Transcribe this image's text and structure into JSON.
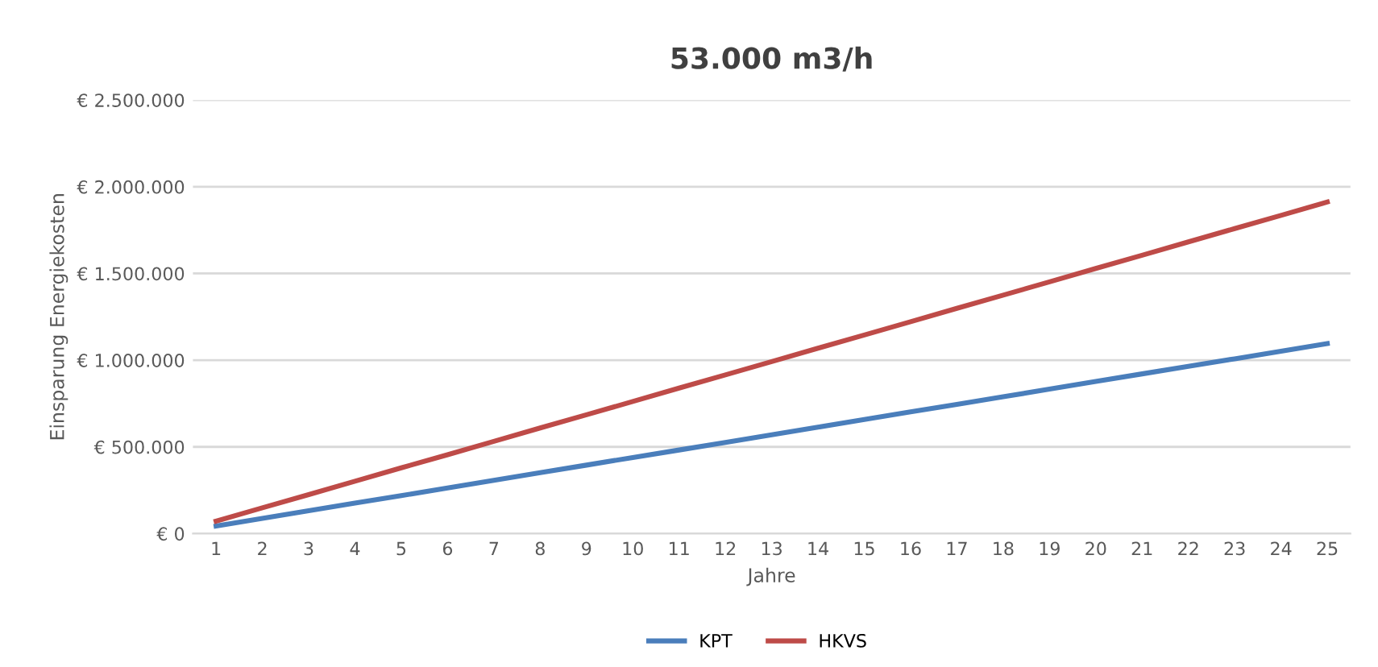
{
  "chart_data": {
    "type": "line",
    "title": "53.000 m3/h",
    "xlabel": "Jahre",
    "ylabel": "Einsparung Energiekosten",
    "categories": [
      "1",
      "2",
      "3",
      "4",
      "5",
      "6",
      "7",
      "8",
      "9",
      "10",
      "11",
      "12",
      "13",
      "14",
      "15",
      "16",
      "17",
      "18",
      "19",
      "20",
      "21",
      "22",
      "23",
      "24",
      "25"
    ],
    "series": [
      {
        "name": "KPT",
        "color": "#4a7ebb",
        "values": [
          44000,
          88000,
          132000,
          176000,
          219000,
          263000,
          307000,
          351000,
          395000,
          439000,
          482000,
          526000,
          570000,
          614000,
          658000,
          702000,
          745000,
          789000,
          833000,
          877000,
          921000,
          965000,
          1008000,
          1052000,
          1096000
        ]
      },
      {
        "name": "HKVS",
        "color": "#be4b48",
        "values": [
          72000,
          149000,
          225000,
          302000,
          379000,
          455000,
          532000,
          609000,
          685000,
          762000,
          839000,
          915000,
          992000,
          1069000,
          1145000,
          1222000,
          1299000,
          1375000,
          1452000,
          1529000,
          1605000,
          1682000,
          1759000,
          1835000,
          1912000
        ]
      }
    ],
    "ylim": [
      0,
      2500000
    ],
    "yticks": [
      {
        "value": 0,
        "label": "€ 0"
      },
      {
        "value": 500000,
        "label": "€ 500.000"
      },
      {
        "value": 1000000,
        "label": "€ 1.000.000"
      },
      {
        "value": 1500000,
        "label": "€ 1.500.000"
      },
      {
        "value": 2000000,
        "label": "€ 2.000.000"
      },
      {
        "value": 2500000,
        "label": "€ 2.500.000"
      }
    ],
    "grid": "y",
    "legend": "bottom",
    "marker": "none",
    "line_style": "solid"
  }
}
